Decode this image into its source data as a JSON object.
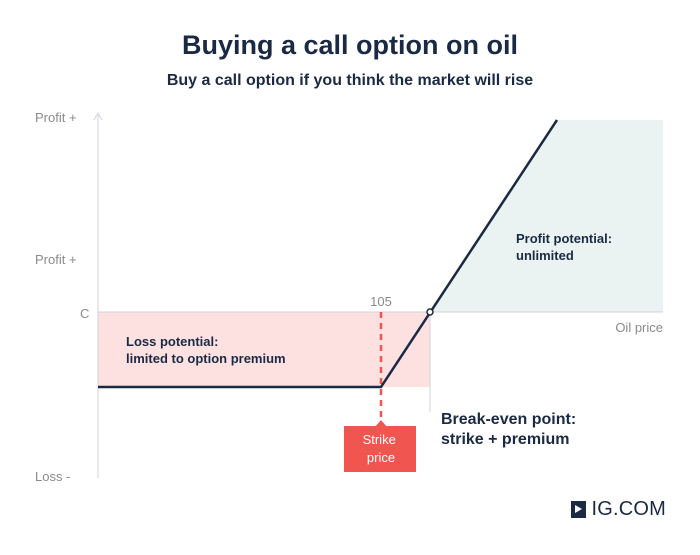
{
  "header": {
    "title": "Buying a call option on oil",
    "subtitle": "Buy a call option if you think the market will rise"
  },
  "chart_data": {
    "type": "line",
    "title": "Buying a call option on oil",
    "subtitle": "Buy a call option if you think the market will rise",
    "xlabel": "Oil price",
    "ylabel": "",
    "y_tick_labels": [
      "Profit +",
      "Profit +",
      "C",
      "Loss -"
    ],
    "strike_value_label": "105",
    "series": [
      {
        "values_description": "payoff",
        "x": [
          "start",
          "strike",
          "break-even",
          "end"
        ],
        "y": [
          "-premium",
          "-premium",
          0,
          "rising"
        ]
      }
    ],
    "annotations": {
      "loss": "Loss  potential:\nlimited to option premium",
      "profit": "Profit potential:\nunlimited",
      "strike": "Strike\nprice",
      "breakeven": "Break-even point:\nstrike + premium"
    },
    "colors": {
      "line": "#1b2a44",
      "loss_fill": "#fde0e0",
      "profit_fill": "#eaf2f2",
      "strike": "#f0554f",
      "axis": "#cfd3d8"
    }
  },
  "brand": {
    "logo_text": "IG.COM",
    "logo_icon": "arrow-box-icon"
  }
}
